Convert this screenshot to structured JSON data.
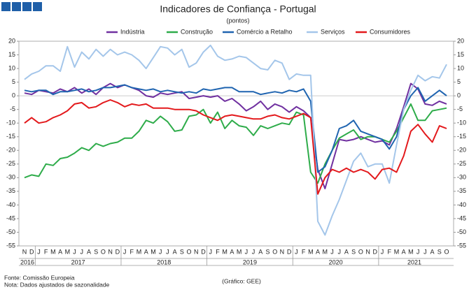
{
  "chart_data": {
    "type": "line",
    "title": "Indicadores de Confiança - Portugal",
    "subtitle": "(pontos)",
    "source": "Fonte: Comissão Europeia",
    "note": "Nota: Dados ajustados de sazonalidade",
    "credit": "(Gráfico: GEE)",
    "categories": [
      "N",
      "D",
      "J",
      "F",
      "M",
      "A",
      "M",
      "J",
      "J",
      "A",
      "S",
      "O",
      "N",
      "D",
      "J",
      "F",
      "M",
      "A",
      "M",
      "J",
      "J",
      "A",
      "S",
      "O",
      "N",
      "D",
      "J",
      "F",
      "M",
      "A",
      "M",
      "J",
      "J",
      "A",
      "S",
      "O",
      "N",
      "D",
      "J",
      "F",
      "M",
      "A",
      "M",
      "J",
      "J",
      "A",
      "S",
      "O",
      "N",
      "D",
      "J",
      "F",
      "M",
      "A",
      "M",
      "J",
      "J",
      "A",
      "S",
      "O"
    ],
    "years": [
      "2016",
      "2017",
      "2018",
      "2019",
      "2020",
      "2021"
    ],
    "ylim": [
      -55,
      20
    ],
    "yticks": [
      -55,
      -50,
      -45,
      -40,
      -35,
      -30,
      -25,
      -20,
      -15,
      -10,
      -5,
      0,
      5,
      10,
      15,
      20
    ],
    "grid": false,
    "series": [
      {
        "name": "Indústria",
        "color": "#7030a0",
        "values": [
          1,
          0.5,
          2,
          1.5,
          1,
          2.5,
          1.5,
          3,
          1,
          2.5,
          0.5,
          3,
          4.5,
          3,
          4,
          3,
          2,
          0,
          -0.5,
          1,
          0.5,
          1,
          1.5,
          -1,
          -0.5,
          0,
          -0.5,
          0,
          -2,
          -1,
          -3,
          -5.5,
          -4,
          -2,
          -5,
          -3,
          -4,
          -6,
          -4,
          -5.5,
          -8,
          -27,
          -34,
          -25,
          -16,
          -16.5,
          -16,
          -15,
          -16,
          -17,
          -16.5,
          -18,
          -12,
          -4,
          4.5,
          2.5,
          -3,
          -3.5,
          -2,
          -3
        ]
      },
      {
        "name": "Construção",
        "color": "#2eac4a",
        "values": [
          -30,
          -29,
          -29.5,
          -25,
          -25.5,
          -23,
          -22.5,
          -21,
          -19,
          -20,
          -17.5,
          -18.5,
          -17.5,
          -17,
          -15.5,
          -15.5,
          -13,
          -9,
          -10,
          -7.5,
          -9.5,
          -13,
          -12.5,
          -7.5,
          -7,
          -5,
          -10,
          -6,
          -12,
          -9,
          -11,
          -11.5,
          -14.5,
          -11,
          -12,
          -11,
          -10,
          -10.5,
          -6,
          -7,
          -28,
          -32,
          -25,
          -20,
          -15.5,
          -14,
          -12.5,
          -16,
          -15,
          -15,
          -16,
          -17,
          -13,
          -8,
          -3,
          -9,
          -9,
          -5.5,
          -5,
          -4.5
        ]
      },
      {
        "name": "Comércio a Retalho",
        "color": "#1f64b0",
        "values": [
          2,
          1.5,
          2,
          2,
          0.5,
          1.5,
          1.5,
          2,
          2.5,
          1.5,
          2,
          3,
          3,
          3.5,
          4,
          3,
          2.5,
          2,
          2.5,
          1.5,
          2,
          1.5,
          1,
          1.5,
          1,
          2.5,
          2,
          2.5,
          3,
          3,
          1.5,
          1.5,
          1.5,
          0.5,
          1,
          1.5,
          1,
          2,
          1.5,
          2.5,
          -2,
          -28,
          -26,
          -20,
          -12,
          -11,
          -9,
          -13,
          -14,
          -15,
          -16,
          -19.5,
          -15,
          -5,
          0,
          3,
          -2,
          0,
          2,
          0
        ]
      },
      {
        "name": "Serviços",
        "color": "#a4c6ea",
        "values": [
          6,
          8,
          9,
          11,
          11,
          9,
          18,
          10.5,
          16,
          13.5,
          17,
          14.5,
          17,
          15,
          16,
          15,
          13,
          10,
          14,
          18,
          17.5,
          15,
          17,
          10.5,
          12,
          16,
          18.5,
          14.5,
          13,
          13.5,
          14.5,
          14,
          12,
          10,
          9.5,
          13,
          12,
          6,
          8,
          7.5,
          7.5,
          -46,
          -51,
          -44,
          -38,
          -31,
          -24,
          -21,
          -26,
          -25,
          -25,
          -32,
          -18,
          -5,
          2,
          7.5,
          5.5,
          7,
          6.5,
          11.5
        ]
      },
      {
        "name": "Consumidores",
        "color": "#e3191c",
        "values": [
          -10,
          -8,
          -10,
          -9.5,
          -8,
          -7,
          -5.5,
          -3,
          -2.5,
          -4.5,
          -4,
          -2.5,
          -1.5,
          -2.5,
          -4,
          -3,
          -3.5,
          -3,
          -4.5,
          -4.5,
          -4.5,
          -5,
          -5,
          -5,
          -5.5,
          -7,
          -8,
          -9,
          -7.5,
          -7,
          -7.5,
          -8,
          -8.5,
          -8.5,
          -7.5,
          -7,
          -8,
          -8.5,
          -7.5,
          -6.5,
          -8,
          -36,
          -30,
          -27,
          -28,
          -26.5,
          -28,
          -27,
          -28,
          -30.5,
          -27,
          -26.5,
          -28,
          -22,
          -13,
          -10.5,
          -14,
          -17,
          -11,
          -12
        ]
      }
    ]
  }
}
